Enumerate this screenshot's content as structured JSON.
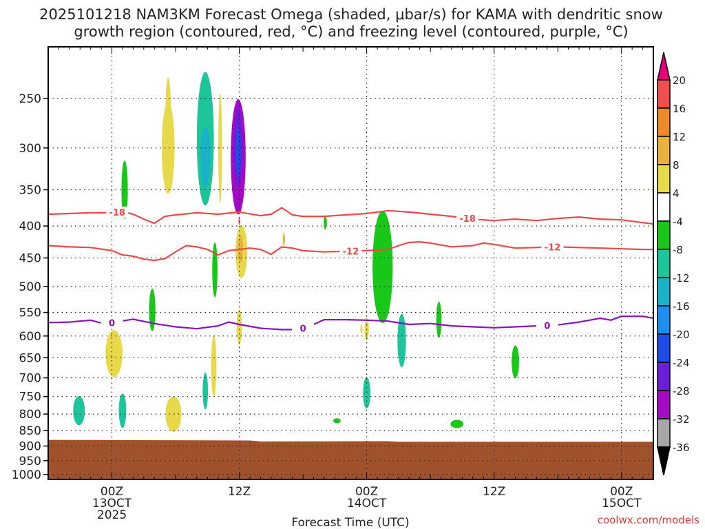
{
  "chart_data": {
    "type": "heatmap",
    "title_lines": [
      "2025101218 NAM3KM Forecast Omega (shaded, μbar/s) for KAMA with dendritic snow",
      "growth region (contoured, red, °C) and freezing level (contoured, purple, °C)"
    ],
    "xlabel": "Forecast Time (UTC)",
    "ylabel": "",
    "x_range_hours": [
      -6,
      51
    ],
    "x_ticks": [
      {
        "hour": 0,
        "lines": [
          "00Z",
          "13OCT",
          "2025"
        ]
      },
      {
        "hour": 12,
        "lines": [
          "12Z"
        ]
      },
      {
        "hour": 24,
        "lines": [
          "00Z",
          "14OCT"
        ]
      },
      {
        "hour": 36,
        "lines": [
          "12Z"
        ]
      },
      {
        "hour": 48,
        "lines": [
          "00Z",
          "15OCT"
        ]
      }
    ],
    "y_ticks_hpa": [
      250,
      300,
      350,
      400,
      450,
      500,
      550,
      600,
      650,
      700,
      750,
      800,
      850,
      900,
      950,
      1000
    ],
    "y_range_hpa": [
      195,
      1040
    ],
    "grid": true,
    "colorbar": {
      "labels": [
        "20",
        "16",
        "12",
        "8",
        "4",
        "-4",
        "-8",
        "-12",
        "-16",
        "-20",
        "-24",
        "-28",
        "-32",
        "-36"
      ],
      "bins": [
        {
          "range": [
            20,
            99
          ],
          "color": "#e5007a"
        },
        {
          "range": [
            16,
            20
          ],
          "color": "#f04f4f"
        },
        {
          "range": [
            12,
            16
          ],
          "color": "#ef8a2a"
        },
        {
          "range": [
            8,
            12
          ],
          "color": "#e8b23a"
        },
        {
          "range": [
            4,
            8
          ],
          "color": "#e8d94a"
        },
        {
          "range": [
            -4,
            4
          ],
          "color": "#ffffff"
        },
        {
          "range": [
            -8,
            -4
          ],
          "color": "#19c719"
        },
        {
          "range": [
            -12,
            -8
          ],
          "color": "#1ec49a"
        },
        {
          "range": [
            -16,
            -12
          ],
          "color": "#1ab2c8"
        },
        {
          "range": [
            -20,
            -16
          ],
          "color": "#1e8ef0"
        },
        {
          "range": [
            -24,
            -20
          ],
          "color": "#1e4ce6"
        },
        {
          "range": [
            -28,
            -24
          ],
          "color": "#6a1ed8"
        },
        {
          "range": [
            -32,
            -28
          ],
          "color": "#a40ac8"
        },
        {
          "range": [
            -36,
            -32
          ],
          "color": "#a6a6a6"
        },
        {
          "range": [
            -99,
            -36
          ],
          "color": "#000000"
        }
      ]
    },
    "contours": [
      {
        "name": "dgz-top",
        "label": "-18",
        "color": "#f04848",
        "label_hours": [
          0.5,
          33.5
        ],
        "points": [
          [
            -6,
            383
          ],
          [
            -4,
            382
          ],
          [
            -2,
            381
          ],
          [
            0,
            381
          ],
          [
            1,
            379
          ],
          [
            2,
            383
          ],
          [
            3,
            390
          ],
          [
            4,
            396
          ],
          [
            5,
            386
          ],
          [
            6,
            384
          ],
          [
            8,
            381
          ],
          [
            10,
            383
          ],
          [
            12,
            380
          ],
          [
            14,
            385
          ],
          [
            15,
            383
          ],
          [
            16,
            374
          ],
          [
            17,
            384
          ],
          [
            18,
            386
          ],
          [
            20,
            386
          ],
          [
            22,
            384
          ],
          [
            24,
            382
          ],
          [
            26,
            378
          ],
          [
            28,
            380
          ],
          [
            30,
            383
          ],
          [
            32,
            386
          ],
          [
            34,
            390
          ],
          [
            36,
            392
          ],
          [
            38,
            390
          ],
          [
            40,
            392
          ],
          [
            42,
            389
          ],
          [
            44,
            387
          ],
          [
            46,
            390
          ],
          [
            48,
            391
          ],
          [
            50,
            395
          ],
          [
            51,
            397
          ]
        ]
      },
      {
        "name": "dgz-bottom",
        "label": "-12",
        "color": "#f04848",
        "label_hours": [
          22.5,
          41.5
        ],
        "points": [
          [
            -6,
            430
          ],
          [
            -4,
            432
          ],
          [
            -2,
            433
          ],
          [
            0,
            438
          ],
          [
            1,
            445
          ],
          [
            2,
            447
          ],
          [
            3,
            452
          ],
          [
            4,
            454
          ],
          [
            5,
            451
          ],
          [
            6,
            440
          ],
          [
            7,
            430
          ],
          [
            8,
            432
          ],
          [
            9,
            436
          ],
          [
            10,
            445
          ],
          [
            11,
            438
          ],
          [
            12,
            436
          ],
          [
            13,
            434
          ],
          [
            14,
            436
          ],
          [
            15,
            444
          ],
          [
            16,
            432
          ],
          [
            17,
            434
          ],
          [
            18,
            438
          ],
          [
            20,
            440
          ],
          [
            22,
            439
          ],
          [
            24,
            438
          ],
          [
            26,
            436
          ],
          [
            27,
            430
          ],
          [
            28,
            425
          ],
          [
            29,
            424
          ],
          [
            30,
            426
          ],
          [
            32,
            432
          ],
          [
            34,
            430
          ],
          [
            35,
            426
          ],
          [
            36,
            428
          ],
          [
            38,
            434
          ],
          [
            40,
            433
          ],
          [
            42,
            432
          ],
          [
            44,
            433
          ],
          [
            46,
            434
          ],
          [
            48,
            435
          ],
          [
            50,
            436
          ],
          [
            51,
            436
          ]
        ]
      },
      {
        "name": "freezing-level",
        "label": "0",
        "color": "#8a10c0",
        "label_hours": [
          0,
          18,
          41
        ],
        "points": [
          [
            -6,
            571
          ],
          [
            -4,
            570
          ],
          [
            -2,
            566
          ],
          [
            -1,
            572
          ],
          [
            0,
            571
          ],
          [
            2,
            564
          ],
          [
            4,
            573
          ],
          [
            6,
            580
          ],
          [
            8,
            584
          ],
          [
            10,
            578
          ],
          [
            11,
            570
          ],
          [
            12,
            575
          ],
          [
            14,
            583
          ],
          [
            16,
            586
          ],
          [
            17,
            586
          ],
          [
            18,
            583
          ],
          [
            19,
            575
          ],
          [
            20,
            565
          ],
          [
            22,
            565
          ],
          [
            24,
            566
          ],
          [
            26,
            568
          ],
          [
            28,
            575
          ],
          [
            30,
            573
          ],
          [
            32,
            578
          ],
          [
            34,
            580
          ],
          [
            36,
            582
          ],
          [
            38,
            580
          ],
          [
            40,
            578
          ],
          [
            42,
            576
          ],
          [
            44,
            570
          ],
          [
            46,
            562
          ],
          [
            47,
            566
          ],
          [
            48,
            558
          ],
          [
            50,
            558
          ],
          [
            51,
            562
          ]
        ]
      }
    ],
    "cells": [
      {
        "hour": 11.9,
        "p": 310,
        "dh": 1.4,
        "dp": 130,
        "value": -30
      },
      {
        "hour": 11.9,
        "p": 300,
        "dh": 0.8,
        "dp": 85,
        "value": -26
      },
      {
        "hour": 11.9,
        "p": 305,
        "dh": 0.45,
        "dp": 55,
        "value": -22
      },
      {
        "hour": 8.8,
        "p": 290,
        "dh": 1.6,
        "dp": 140,
        "value": -12
      },
      {
        "hour": 8.8,
        "p": 310,
        "dh": 0.9,
        "dp": 70,
        "value": -14
      },
      {
        "hour": 10.2,
        "p": 300,
        "dh": 0.35,
        "dp": 120,
        "value": 6
      },
      {
        "hour": 5.3,
        "p": 300,
        "dh": 1.2,
        "dp": 100,
        "value": 5
      },
      {
        "hour": 5.3,
        "p": 260,
        "dh": 0.5,
        "dp": 60,
        "value": 6
      },
      {
        "hour": 1.2,
        "p": 350,
        "dh": 0.6,
        "dp": 75,
        "value": -6
      },
      {
        "hour": 12.2,
        "p": 440,
        "dh": 1.1,
        "dp": 85,
        "value": 7
      },
      {
        "hour": 12.1,
        "p": 435,
        "dh": 0.5,
        "dp": 45,
        "value": 11
      },
      {
        "hour": 9.7,
        "p": 470,
        "dh": 0.5,
        "dp": 95,
        "value": -6
      },
      {
        "hour": 12.0,
        "p": 580,
        "dh": 0.5,
        "dp": 75,
        "value": 6
      },
      {
        "hour": 25.5,
        "p": 465,
        "dh": 1.9,
        "dp": 190,
        "value": -6
      },
      {
        "hour": 27.3,
        "p": 610,
        "dh": 0.8,
        "dp": 120,
        "value": -10
      },
      {
        "hour": 3.8,
        "p": 545,
        "dh": 0.6,
        "dp": 85,
        "value": -6
      },
      {
        "hour": 0.2,
        "p": 640,
        "dh": 1.6,
        "dp": 110,
        "value": 6
      },
      {
        "hour": 9.6,
        "p": 670,
        "dh": 0.5,
        "dp": 150,
        "value": 6
      },
      {
        "hour": 8.8,
        "p": 735,
        "dh": 0.5,
        "dp": 100,
        "value": -10
      },
      {
        "hour": 5.8,
        "p": 800,
        "dh": 1.5,
        "dp": 105,
        "value": 6
      },
      {
        "hour": -3.1,
        "p": 790,
        "dh": 1.1,
        "dp": 85,
        "value": -10
      },
      {
        "hour": 1.0,
        "p": 790,
        "dh": 0.7,
        "dp": 100,
        "value": -10
      },
      {
        "hour": 24.0,
        "p": 740,
        "dh": 0.7,
        "dp": 85,
        "value": -10
      },
      {
        "hour": 24.0,
        "p": 585,
        "dh": 0.4,
        "dp": 50,
        "value": 6
      },
      {
        "hour": 21.2,
        "p": 820,
        "dh": 0.7,
        "dp": 15,
        "value": -6
      },
      {
        "hour": 32.5,
        "p": 830,
        "dh": 1.2,
        "dp": 25,
        "value": -6
      },
      {
        "hour": 38.0,
        "p": 660,
        "dh": 0.7,
        "dp": 80,
        "value": -6
      },
      {
        "hour": 30.8,
        "p": 565,
        "dh": 0.5,
        "dp": 75,
        "value": -6
      },
      {
        "hour": 20.1,
        "p": 395,
        "dh": 0.3,
        "dp": 20,
        "value": -6
      },
      {
        "hour": 23.5,
        "p": 585,
        "dh": 0.2,
        "dp": 20,
        "value": 6
      },
      {
        "hour": 16.2,
        "p": 420,
        "dh": 0.2,
        "dp": 20,
        "value": 8
      },
      {
        "hour": 12.0,
        "p": 393,
        "dh": 0.15,
        "dp": 12,
        "value": 16
      }
    ],
    "terrain_color": "#a0522d",
    "terrain_top_hpa": [
      [
        -6,
        880
      ],
      [
        5,
        881
      ],
      [
        13,
        882
      ],
      [
        14,
        885
      ],
      [
        26,
        884
      ],
      [
        27,
        886
      ],
      [
        51,
        886
      ]
    ]
  },
  "credit": "coolwx.com/models"
}
